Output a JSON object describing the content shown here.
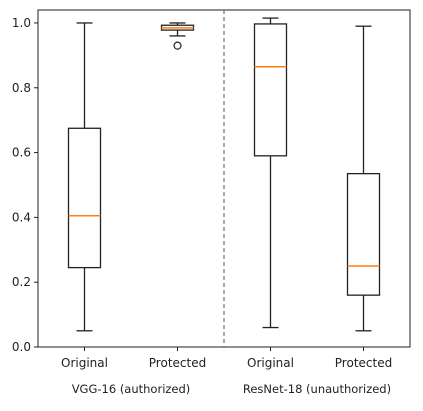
{
  "chart_data": {
    "type": "boxplot",
    "ylim": [
      0.0,
      1.04
    ],
    "yticks": [
      "0.0",
      "0.2",
      "0.4",
      "0.6",
      "0.8",
      "1.0"
    ],
    "grid": false,
    "boxes": [
      {
        "label": "Original",
        "group": "VGG-16 (authorized)",
        "whislo": 0.05,
        "q1": 0.245,
        "median": 0.405,
        "q3": 0.675,
        "whishi": 1.0,
        "fliers": []
      },
      {
        "label": "Protected",
        "group": "VGG-16 (authorized)",
        "whislo": 0.96,
        "q1": 0.978,
        "median": 0.985,
        "q3": 0.993,
        "whishi": 1.0,
        "fliers": [
          0.93
        ]
      },
      {
        "label": "Original",
        "group": "ResNet-18 (unauthorized)",
        "whislo": 0.06,
        "q1": 0.59,
        "median": 0.865,
        "q3": 0.997,
        "whishi": 1.015,
        "fliers": []
      },
      {
        "label": "Protected",
        "group": "ResNet-18 (unauthorized)",
        "whislo": 0.05,
        "q1": 0.16,
        "median": 0.25,
        "q3": 0.535,
        "whishi": 0.99,
        "fliers": []
      }
    ],
    "groups": [
      "VGG-16 (authorized)",
      "ResNet-18 (unauthorized)"
    ],
    "colors": {
      "box": "#222222",
      "median": "#ff7f0e",
      "divider": "#555555",
      "axis": "#222222"
    }
  }
}
